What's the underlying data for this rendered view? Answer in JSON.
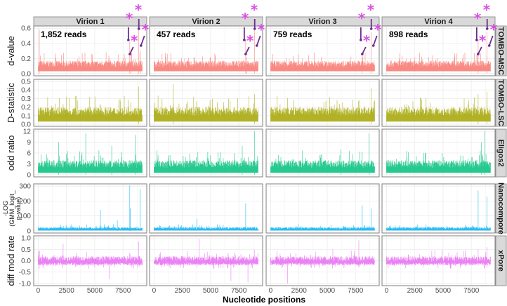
{
  "chart_data": {
    "type": "line",
    "xlabel": "Nucleotide positions",
    "xlim": [
      0,
      9200
    ],
    "xticks": [
      0,
      2500,
      5000,
      7500
    ],
    "xtick_labels": [
      "0",
      "2500",
      "5000",
      "7500"
    ],
    "columns": [
      {
        "label": "Virion 1",
        "reads": "1,852 reads"
      },
      {
        "label": "Virion 2",
        "reads": "457 reads"
      },
      {
        "label": "Virion 3",
        "reads": "759 reads"
      },
      {
        "label": "Virion 4",
        "reads": "898 reads"
      }
    ],
    "rows": [
      {
        "method": "TOMBO-MSC",
        "ylabel": "d-value",
        "color": "#F8766D",
        "ylim": [
          0,
          0.6
        ],
        "yticks": [
          0,
          0.2,
          0.4,
          0.6
        ],
        "ytick_labels": [
          "0.0",
          "0.2",
          "0.4",
          "0.6"
        ],
        "baseline": [
          0.03,
          0.17
        ],
        "peaks": [
          [
            [
              100,
              0.58
            ],
            [
              8100,
              0.42
            ],
            [
              8200,
              0.28
            ],
            [
              8900,
              0.58
            ],
            [
              9050,
              0.3
            ]
          ],
          [
            [
              8100,
              0.45
            ],
            [
              8900,
              0.6
            ],
            [
              8200,
              0.22
            ]
          ],
          [
            [
              8100,
              0.28
            ],
            [
              8900,
              0.55
            ]
          ],
          [
            [
              8100,
              0.45
            ],
            [
              8900,
              0.55
            ]
          ]
        ]
      },
      {
        "method": "TOMBO-LSC",
        "ylabel": "D-statistic",
        "color": "#A3A500",
        "ylim": [
          0,
          0.5
        ],
        "yticks": [
          0,
          0.1,
          0.2,
          0.3,
          0.4,
          0.5
        ],
        "ytick_labels": [
          "0.0",
          "0.1",
          "0.2",
          "0.3",
          "0.4",
          "0.5"
        ],
        "baseline": [
          0.03,
          0.2
        ],
        "peaks": [
          [
            [
              8900,
              0.44
            ]
          ],
          [
            [
              1700,
              0.47
            ],
            [
              8900,
              0.35
            ]
          ],
          [
            [
              8900,
              0.42
            ]
          ],
          [
            [
              8100,
              0.35
            ],
            [
              8900,
              0.38
            ]
          ]
        ]
      },
      {
        "method": "Eligos2",
        "ylabel": "odd ratio",
        "color": "#00BF7D",
        "ylim": [
          0,
          12
        ],
        "yticks": [
          0,
          3,
          6,
          9,
          12
        ],
        "ytick_labels": [
          "0",
          "3",
          "6",
          "9",
          "12"
        ],
        "baseline": [
          0.5,
          4
        ],
        "peaks": [
          [
            [
              4200,
              11.5
            ],
            [
              1800,
              9
            ],
            [
              8600,
              11
            ],
            [
              6500,
              8
            ]
          ],
          [
            [
              8900,
              12
            ],
            [
              7800,
              8
            ]
          ],
          [
            [
              8700,
              11.5
            ],
            [
              6200,
              7
            ]
          ],
          [
            [
              8700,
              12
            ],
            [
              8400,
              9
            ]
          ]
        ]
      },
      {
        "method": "Nanocompore",
        "ylabel": "-LOG (GMM_logit_ p-value)",
        "ylabel_lines": [
          "-LOG",
          "(GMM_logit_",
          "p-value)"
        ],
        "color": "#00B0F6",
        "ylim": [
          0,
          300
        ],
        "yticks": [
          0,
          100,
          200,
          300
        ],
        "ytick_labels": [
          "0",
          "100",
          "200",
          "300"
        ],
        "baseline": [
          2,
          25
        ],
        "peaks": [
          [
            [
              8100,
              305
            ],
            [
              8150,
              150
            ],
            [
              9000,
              280
            ],
            [
              5500,
              140
            ],
            [
              7000,
              70
            ]
          ],
          [
            [
              8100,
              185
            ],
            [
              3800,
              80
            ]
          ],
          [
            [
              8100,
              170
            ],
            [
              8900,
              150
            ]
          ],
          [
            [
              8100,
              270
            ],
            [
              8900,
              230
            ]
          ]
        ]
      },
      {
        "method": "xPore",
        "ylabel": "diff mod rate",
        "color": "#E76BF3",
        "ylim": [
          -1,
          1
        ],
        "yticks": [
          -1,
          -0.5,
          0,
          0.5,
          1
        ],
        "ytick_labels": [
          "-1.0",
          "-0.5",
          "0.0",
          "0.5",
          "1.0"
        ],
        "baseline": [
          -0.2,
          0.2
        ],
        "peaks": [
          [
            [
              2200,
              0.75
            ],
            [
              6300,
              -0.8
            ],
            [
              8900,
              0.85
            ]
          ],
          [
            [
              4000,
              0.95
            ],
            [
              6800,
              -0.9
            ],
            [
              8300,
              -0.95
            ]
          ],
          [
            [
              1500,
              -1
            ],
            [
              7800,
              0.9
            ]
          ],
          [
            [
              8100,
              0.5
            ],
            [
              8900,
              0.6
            ]
          ]
        ]
      }
    ],
    "annotations": "asterisks with arrows mark modification peaks in TOMBO-MSC row"
  }
}
